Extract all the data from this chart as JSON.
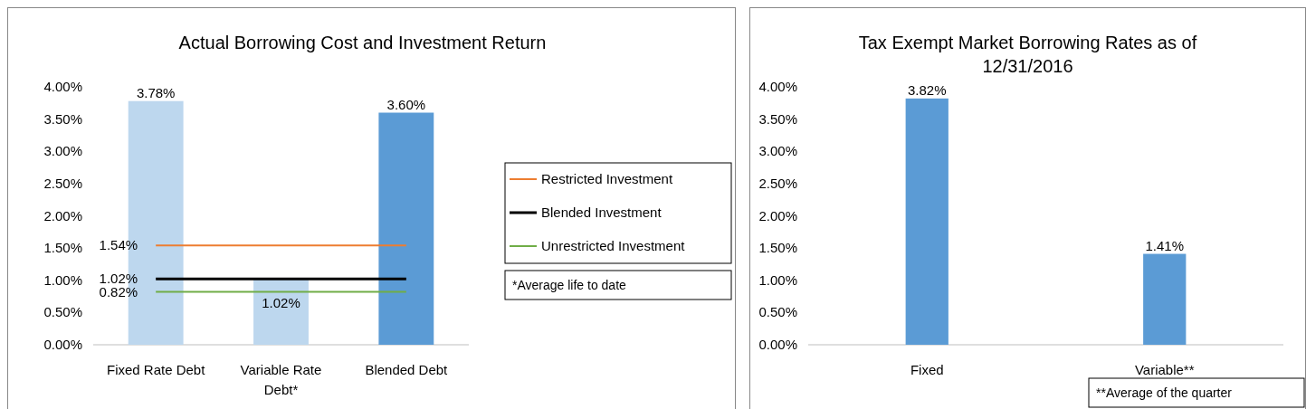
{
  "chart_data": [
    {
      "type": "bar",
      "title": "Actual Borrowing Cost and Investment Return",
      "categories": [
        "Fixed Rate Debt",
        "Variable Rate Debt*",
        "Blended Debt"
      ],
      "ylim": [
        0,
        4
      ],
      "yticks": [
        {
          "value": 0,
          "label": "0.00%"
        },
        {
          "value": 0.5,
          "label": "0.50%"
        },
        {
          "value": 1,
          "label": "1.00%"
        },
        {
          "value": 1.5,
          "label": "1.50%"
        },
        {
          "value": 2,
          "label": "2.00%"
        },
        {
          "value": 2.5,
          "label": "2.50%"
        },
        {
          "value": 3,
          "label": "3.00%"
        },
        {
          "value": 3.5,
          "label": "3.50%"
        },
        {
          "value": 4,
          "label": "4.00%"
        }
      ],
      "legend": "right",
      "annotations": [
        "*Average life to date"
      ],
      "series": [
        {
          "values": [
            3.78,
            1.02,
            3.6
          ],
          "colors": [
            "#bdd7ee",
            "#bdd7ee",
            "#5b9bd5"
          ],
          "value_labels": [
            "3.78%",
            "1.02%",
            "3.60%"
          ]
        },
        {
          "type": "line",
          "name": "Restricted Investment",
          "color": "#ed7d31",
          "values": [
            1.54,
            1.54,
            1.54
          ],
          "value_labels": [
            "1.54%",
            null,
            null
          ]
        },
        {
          "type": "line",
          "name": "Blended Investment",
          "color": "#000000",
          "values": [
            1.02,
            1.02,
            1.02
          ],
          "value_labels": [
            "1.02%",
            null,
            null
          ]
        },
        {
          "type": "line",
          "name": "Unrestricted Investment",
          "color": "#70ad47",
          "values": [
            0.82,
            0.82,
            0.82
          ],
          "value_labels": [
            "0.82%",
            null,
            null
          ]
        }
      ]
    },
    {
      "type": "bar",
      "title": "Tax Exempt Market Borrowing Rates as of 12/31/2016",
      "categories": [
        "Fixed",
        "Variable**"
      ],
      "ylim": [
        0,
        4
      ],
      "yticks": [
        {
          "value": 0,
          "label": "0.00%"
        },
        {
          "value": 0.5,
          "label": "0.50%"
        },
        {
          "value": 1,
          "label": "1.00%"
        },
        {
          "value": 1.5,
          "label": "1.50%"
        },
        {
          "value": 2,
          "label": "2.00%"
        },
        {
          "value": 2.5,
          "label": "2.50%"
        },
        {
          "value": 3,
          "label": "3.00%"
        },
        {
          "value": 3.5,
          "label": "3.50%"
        },
        {
          "value": 4,
          "label": "4.00%"
        }
      ],
      "annotations": [
        "**Average of the quarter"
      ],
      "series": [
        {
          "values": [
            3.82,
            1.41
          ],
          "color": "#5b9bd5",
          "value_labels": [
            "3.82%",
            "1.41%"
          ]
        }
      ]
    }
  ]
}
